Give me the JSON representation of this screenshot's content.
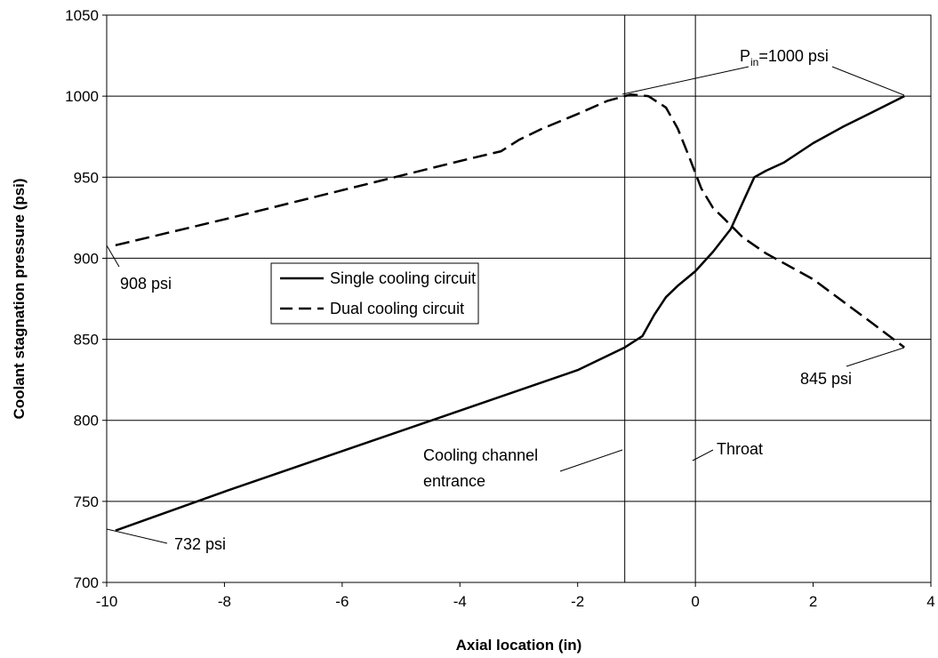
{
  "chart_data": {
    "type": "line",
    "xlabel": "Axial location (in)",
    "ylabel": "Coolant stagnation pressure (psi)",
    "xlim": [
      -10,
      4
    ],
    "ylim": [
      700,
      1050
    ],
    "x_ticks": [
      -10,
      -8,
      -6,
      -4,
      -2,
      0,
      2,
      4
    ],
    "y_ticks": [
      700,
      750,
      800,
      850,
      900,
      950,
      1000,
      1050
    ],
    "grid": "horizontal",
    "legend_placement": "center-left",
    "series": [
      {
        "name": "Single cooling circuit",
        "style": "solid",
        "color": "#000000",
        "x": [
          -9.85,
          -8,
          -6,
          -4,
          -2,
          -1.2,
          -0.9,
          -0.7,
          -0.5,
          -0.3,
          0,
          0.3,
          0.6,
          0.85,
          1.0,
          1.2,
          1.5,
          2,
          2.5,
          3,
          3.55
        ],
        "y": [
          732,
          756,
          781,
          806,
          831,
          845,
          852,
          865,
          876,
          883,
          892,
          904,
          918,
          938,
          950,
          954,
          959,
          971,
          981,
          990,
          1000
        ]
      },
      {
        "name": "Dual cooling circuit",
        "style": "dashed",
        "color": "#000000",
        "x": [
          -9.85,
          -8,
          -6,
          -4,
          -3.3,
          -3,
          -2.6,
          -2,
          -1.5,
          -1.1,
          -0.8,
          -0.5,
          -0.3,
          -0.1,
          0.1,
          0.3,
          0.5,
          0.8,
          1.2,
          2,
          3,
          3.55
        ],
        "y": [
          908,
          924,
          942,
          960,
          966,
          973,
          980,
          989,
          997,
          1001,
          1000,
          993,
          980,
          962,
          943,
          931,
          924,
          913,
          903,
          887,
          860,
          845
        ]
      }
    ],
    "reference_lines": [
      {
        "x": -1.2,
        "label": "Cooling channel entrance"
      },
      {
        "x": 0,
        "label": "Throat"
      }
    ],
    "annotations": {
      "pin_main": "P",
      "pin_sub": "in",
      "pin_rest": "=1000 psi",
      "p908": "908 psi",
      "p845": "845 psi",
      "p732": "732 psi",
      "channel_line1": "Cooling channel",
      "channel_line2": "entrance",
      "throat": "Throat"
    }
  }
}
